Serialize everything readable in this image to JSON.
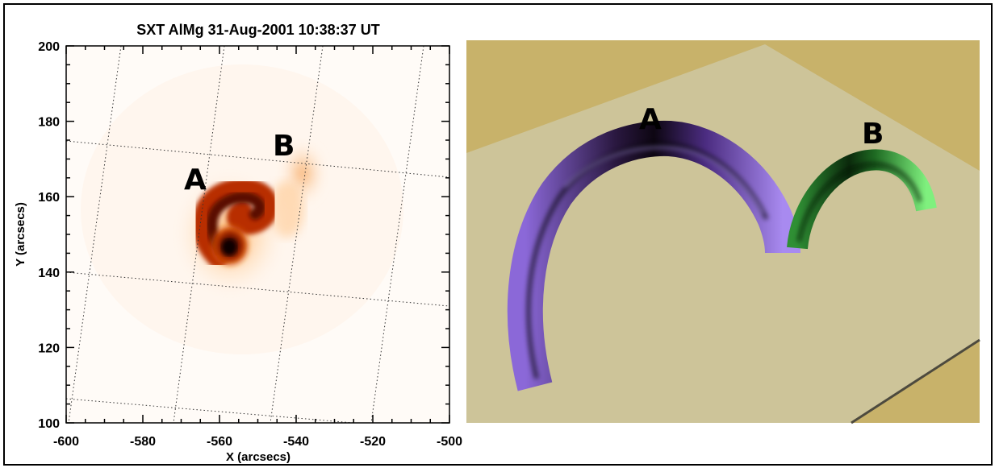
{
  "figure": {
    "left_panel": {
      "title": "SXT AlMg 31-Aug-2001 10:38:37 UT",
      "xlabel": "X (arcsecs)",
      "ylabel": "Y (arcsecs)",
      "labels": [
        "A",
        "B"
      ]
    },
    "right_panel": {
      "labels": [
        "A",
        "B"
      ],
      "colors": {
        "loop_a": "#7f5cc8",
        "loop_b": "#3fbf4a",
        "plane": "#cec497",
        "background": "#c9b369"
      }
    }
  },
  "chart_data": {
    "type": "heatmap",
    "title": "SXT AlMg 31-Aug-2001 10:38:37 UT",
    "xlabel": "X (arcsecs)",
    "ylabel": "Y (arcsecs)",
    "xlim": [
      -600,
      -500
    ],
    "ylim": [
      100,
      200
    ],
    "xticks": [
      -600,
      -580,
      -560,
      -540,
      -520,
      -500
    ],
    "yticks": [
      100,
      120,
      140,
      160,
      180,
      200
    ],
    "annotations": [
      {
        "text": "A",
        "x": -566,
        "y": 163
      },
      {
        "text": "B",
        "x": -542,
        "y": 173
      }
    ]
  }
}
